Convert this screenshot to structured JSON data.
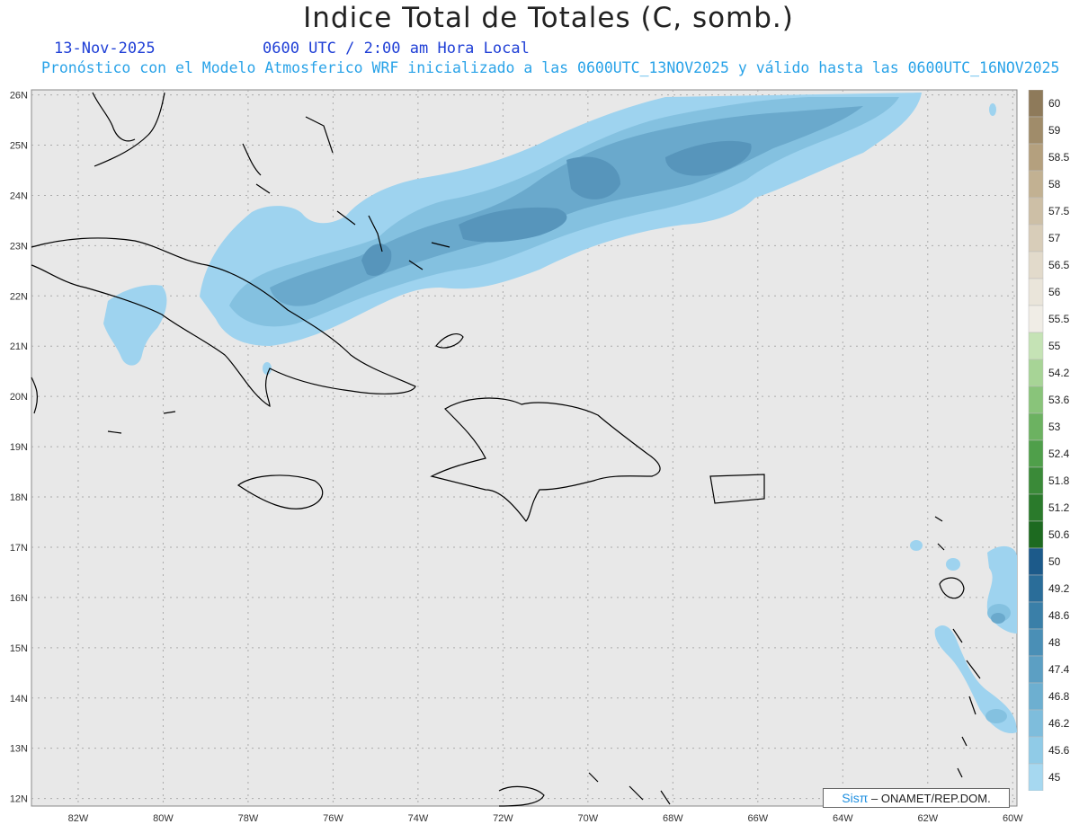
{
  "title": "Indice Total de Totales (C, somb.)",
  "date": "13-Nov-2025",
  "time": "0600 UTC / 2:00 am Hora Local",
  "model_line": "Pronóstico con el Modelo Atmosferico WRF inicializado a las 0600UTC_13NOV2025 y válido hasta las  0600UTC_16NOV2025",
  "credit": {
    "sis": "Sisπ",
    "text": "– ONAMET/REP.DOM."
  },
  "lat_labels": [
    "26N",
    "25N",
    "24N",
    "23N",
    "22N",
    "21N",
    "20N",
    "19N",
    "18N",
    "17N",
    "16N",
    "15N",
    "14N",
    "13N",
    "12N"
  ],
  "lon_labels": [
    "82W",
    "80W",
    "78W",
    "76W",
    "74W",
    "72W",
    "70W",
    "68W",
    "66W",
    "64W",
    "62W",
    "60W"
  ],
  "colorbar": [
    {
      "label": "60",
      "color": "#8e7a5a"
    },
    {
      "label": "59",
      "color": "#a08c6a"
    },
    {
      "label": "58.5",
      "color": "#b4a07e"
    },
    {
      "label": "58",
      "color": "#c2b192"
    },
    {
      "label": "57.5",
      "color": "#cdbfa6"
    },
    {
      "label": "57",
      "color": "#d8cdb9"
    },
    {
      "label": "56.5",
      "color": "#e2dacb"
    },
    {
      "label": "56",
      "color": "#eae5da"
    },
    {
      "label": "55.5",
      "color": "#f0ede6"
    },
    {
      "label": "55",
      "color": "#c5e3b5"
    },
    {
      "label": "54.2",
      "color": "#a7d496"
    },
    {
      "label": "53.6",
      "color": "#89c47a"
    },
    {
      "label": "53",
      "color": "#6cb261"
    },
    {
      "label": "52.4",
      "color": "#4f9f4a"
    },
    {
      "label": "51.8",
      "color": "#3a8a38"
    },
    {
      "label": "51.2",
      "color": "#2a7a2b"
    },
    {
      "label": "50.6",
      "color": "#1d6a20"
    },
    {
      "label": "50",
      "color": "#1c5a8a"
    },
    {
      "label": "49.2",
      "color": "#2a6d99"
    },
    {
      "label": "48.6",
      "color": "#3a7fa8"
    },
    {
      "label": "48",
      "color": "#4a8fb6"
    },
    {
      "label": "47.4",
      "color": "#5c9fc3"
    },
    {
      "label": "46.8",
      "color": "#6dafd0"
    },
    {
      "label": "46.2",
      "color": "#7ebddc"
    },
    {
      "label": "45.6",
      "color": "#90cbe7"
    },
    {
      "label": "45",
      "color": "#a6d8f0"
    }
  ],
  "colors": {
    "map_bg": "#e8e8e8",
    "grid": "#aaaaaa",
    "coast": "#000000",
    "shade_45": "#9ed3ef",
    "shade_46": "#84c1e0",
    "shade_47": "#6aa9cc",
    "shade_48": "#5795bb"
  }
}
